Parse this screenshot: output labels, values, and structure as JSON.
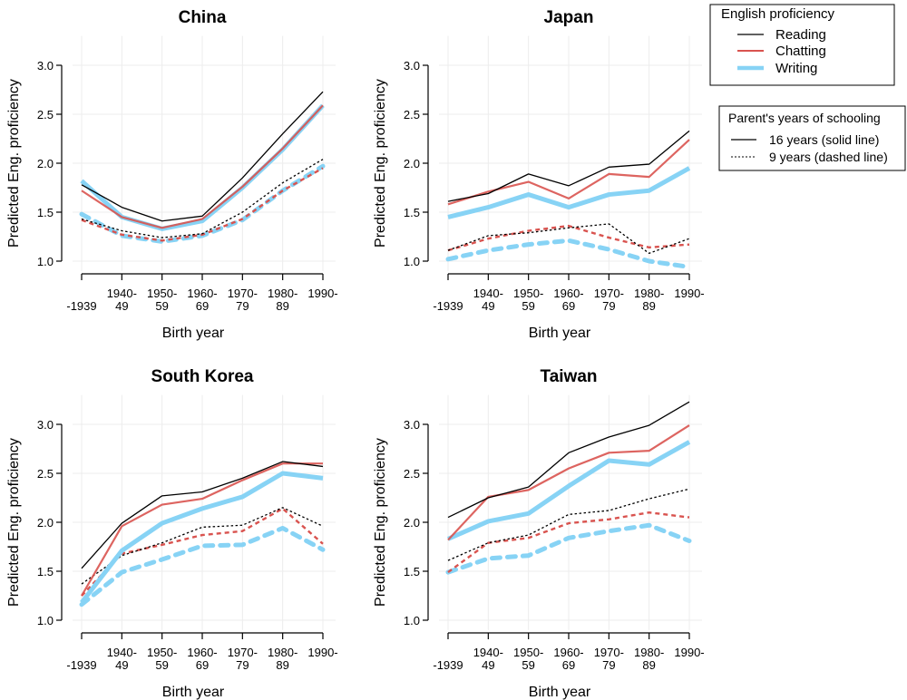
{
  "chart_data": {
    "type": "line",
    "categories": [
      [
        "",
        "-1939"
      ],
      [
        "1940-",
        "49"
      ],
      [
        "1950-",
        "59"
      ],
      [
        "1960-",
        "69"
      ],
      [
        "1970-",
        "79"
      ],
      [
        "1980-",
        "89"
      ],
      [
        "1990-",
        ""
      ]
    ],
    "xlabel": "Birth year",
    "ylabel": "Predicted Eng. proficiency",
    "yticks": [
      "1.0",
      "1.5",
      "2.0",
      "2.5",
      "3.0"
    ],
    "ylim": [
      0.9,
      3.3
    ],
    "grid": true,
    "colors": {
      "Reading": "#000000",
      "Chatting": "#d9534f",
      "Writing": "#87d3f5"
    },
    "legends": [
      {
        "title": "English proficiency",
        "placement": "top-right",
        "entries": [
          "Reading",
          "Chatting",
          "Writing"
        ]
      },
      {
        "title": "Parent's years of schooling",
        "placement": "right",
        "entries": [
          "16 years (solid line)",
          "9 years (dashed line)"
        ]
      }
    ],
    "panels": [
      {
        "title": "China",
        "series": [
          {
            "skill": "Reading",
            "schooling": "16 years",
            "values": [
              1.78,
              1.55,
              1.41,
              1.46,
              1.85,
              2.3,
              2.73
            ]
          },
          {
            "skill": "Chatting",
            "schooling": "16 years",
            "values": [
              1.72,
              1.45,
              1.34,
              1.43,
              1.76,
              2.15,
              2.59
            ]
          },
          {
            "skill": "Writing",
            "schooling": "16 years",
            "values": [
              1.82,
              1.45,
              1.33,
              1.41,
              1.75,
              2.14,
              2.59
            ]
          },
          {
            "skill": "Reading",
            "schooling": "9 years",
            "values": [
              1.43,
              1.31,
              1.24,
              1.28,
              1.5,
              1.8,
              2.04
            ]
          },
          {
            "skill": "Chatting",
            "schooling": "9 years",
            "values": [
              1.42,
              1.27,
              1.21,
              1.27,
              1.43,
              1.72,
              1.95
            ]
          },
          {
            "skill": "Writing",
            "schooling": "9 years",
            "values": [
              1.48,
              1.26,
              1.2,
              1.26,
              1.42,
              1.72,
              1.97
            ]
          }
        ]
      },
      {
        "title": "Japan",
        "series": [
          {
            "skill": "Reading",
            "schooling": "16 years",
            "values": [
              1.61,
              1.69,
              1.89,
              1.77,
              1.96,
              1.99,
              2.33
            ]
          },
          {
            "skill": "Chatting",
            "schooling": "16 years",
            "values": [
              1.58,
              1.71,
              1.81,
              1.64,
              1.89,
              1.86,
              2.24
            ]
          },
          {
            "skill": "Writing",
            "schooling": "16 years",
            "values": [
              1.45,
              1.55,
              1.68,
              1.55,
              1.68,
              1.72,
              1.95
            ]
          },
          {
            "skill": "Reading",
            "schooling": "9 years",
            "values": [
              1.11,
              1.26,
              1.29,
              1.34,
              1.38,
              1.08,
              1.23
            ]
          },
          {
            "skill": "Chatting",
            "schooling": "9 years",
            "values": [
              1.11,
              1.23,
              1.31,
              1.36,
              1.24,
              1.14,
              1.17
            ]
          },
          {
            "skill": "Writing",
            "schooling": "9 years",
            "values": [
              1.02,
              1.11,
              1.17,
              1.21,
              1.12,
              1.0,
              0.94
            ]
          }
        ]
      },
      {
        "title": "South Korea",
        "series": [
          {
            "skill": "Reading",
            "schooling": "16 years",
            "values": [
              1.53,
              1.99,
              2.27,
              2.31,
              2.45,
              2.62,
              2.57
            ]
          },
          {
            "skill": "Chatting",
            "schooling": "16 years",
            "values": [
              1.25,
              1.96,
              2.18,
              2.24,
              2.43,
              2.6,
              2.6
            ]
          },
          {
            "skill": "Writing",
            "schooling": "16 years",
            "values": [
              1.18,
              1.71,
              1.99,
              2.14,
              2.26,
              2.5,
              2.45
            ]
          },
          {
            "skill": "Reading",
            "schooling": "9 years",
            "values": [
              1.37,
              1.66,
              1.79,
              1.95,
              1.97,
              2.15,
              1.96
            ]
          },
          {
            "skill": "Chatting",
            "schooling": "9 years",
            "values": [
              1.25,
              1.68,
              1.77,
              1.87,
              1.91,
              2.14,
              1.78
            ]
          },
          {
            "skill": "Writing",
            "schooling": "9 years",
            "values": [
              1.16,
              1.49,
              1.62,
              1.76,
              1.77,
              1.94,
              1.72
            ]
          }
        ]
      },
      {
        "title": "Taiwan",
        "series": [
          {
            "skill": "Reading",
            "schooling": "16 years",
            "values": [
              2.05,
              2.25,
              2.36,
              2.71,
              2.87,
              2.99,
              3.23
            ]
          },
          {
            "skill": "Chatting",
            "schooling": "16 years",
            "values": [
              1.82,
              2.26,
              2.33,
              2.55,
              2.71,
              2.73,
              2.99
            ]
          },
          {
            "skill": "Writing",
            "schooling": "16 years",
            "values": [
              1.83,
              2.01,
              2.09,
              2.37,
              2.63,
              2.59,
              2.82
            ]
          },
          {
            "skill": "Reading",
            "schooling": "9 years",
            "values": [
              1.61,
              1.79,
              1.87,
              2.08,
              2.12,
              2.24,
              2.34
            ]
          },
          {
            "skill": "Chatting",
            "schooling": "9 years",
            "values": [
              1.49,
              1.79,
              1.84,
              1.99,
              2.03,
              2.1,
              2.05
            ]
          },
          {
            "skill": "Writing",
            "schooling": "9 years",
            "values": [
              1.49,
              1.63,
              1.66,
              1.84,
              1.91,
              1.97,
              1.81
            ]
          }
        ]
      }
    ]
  }
}
